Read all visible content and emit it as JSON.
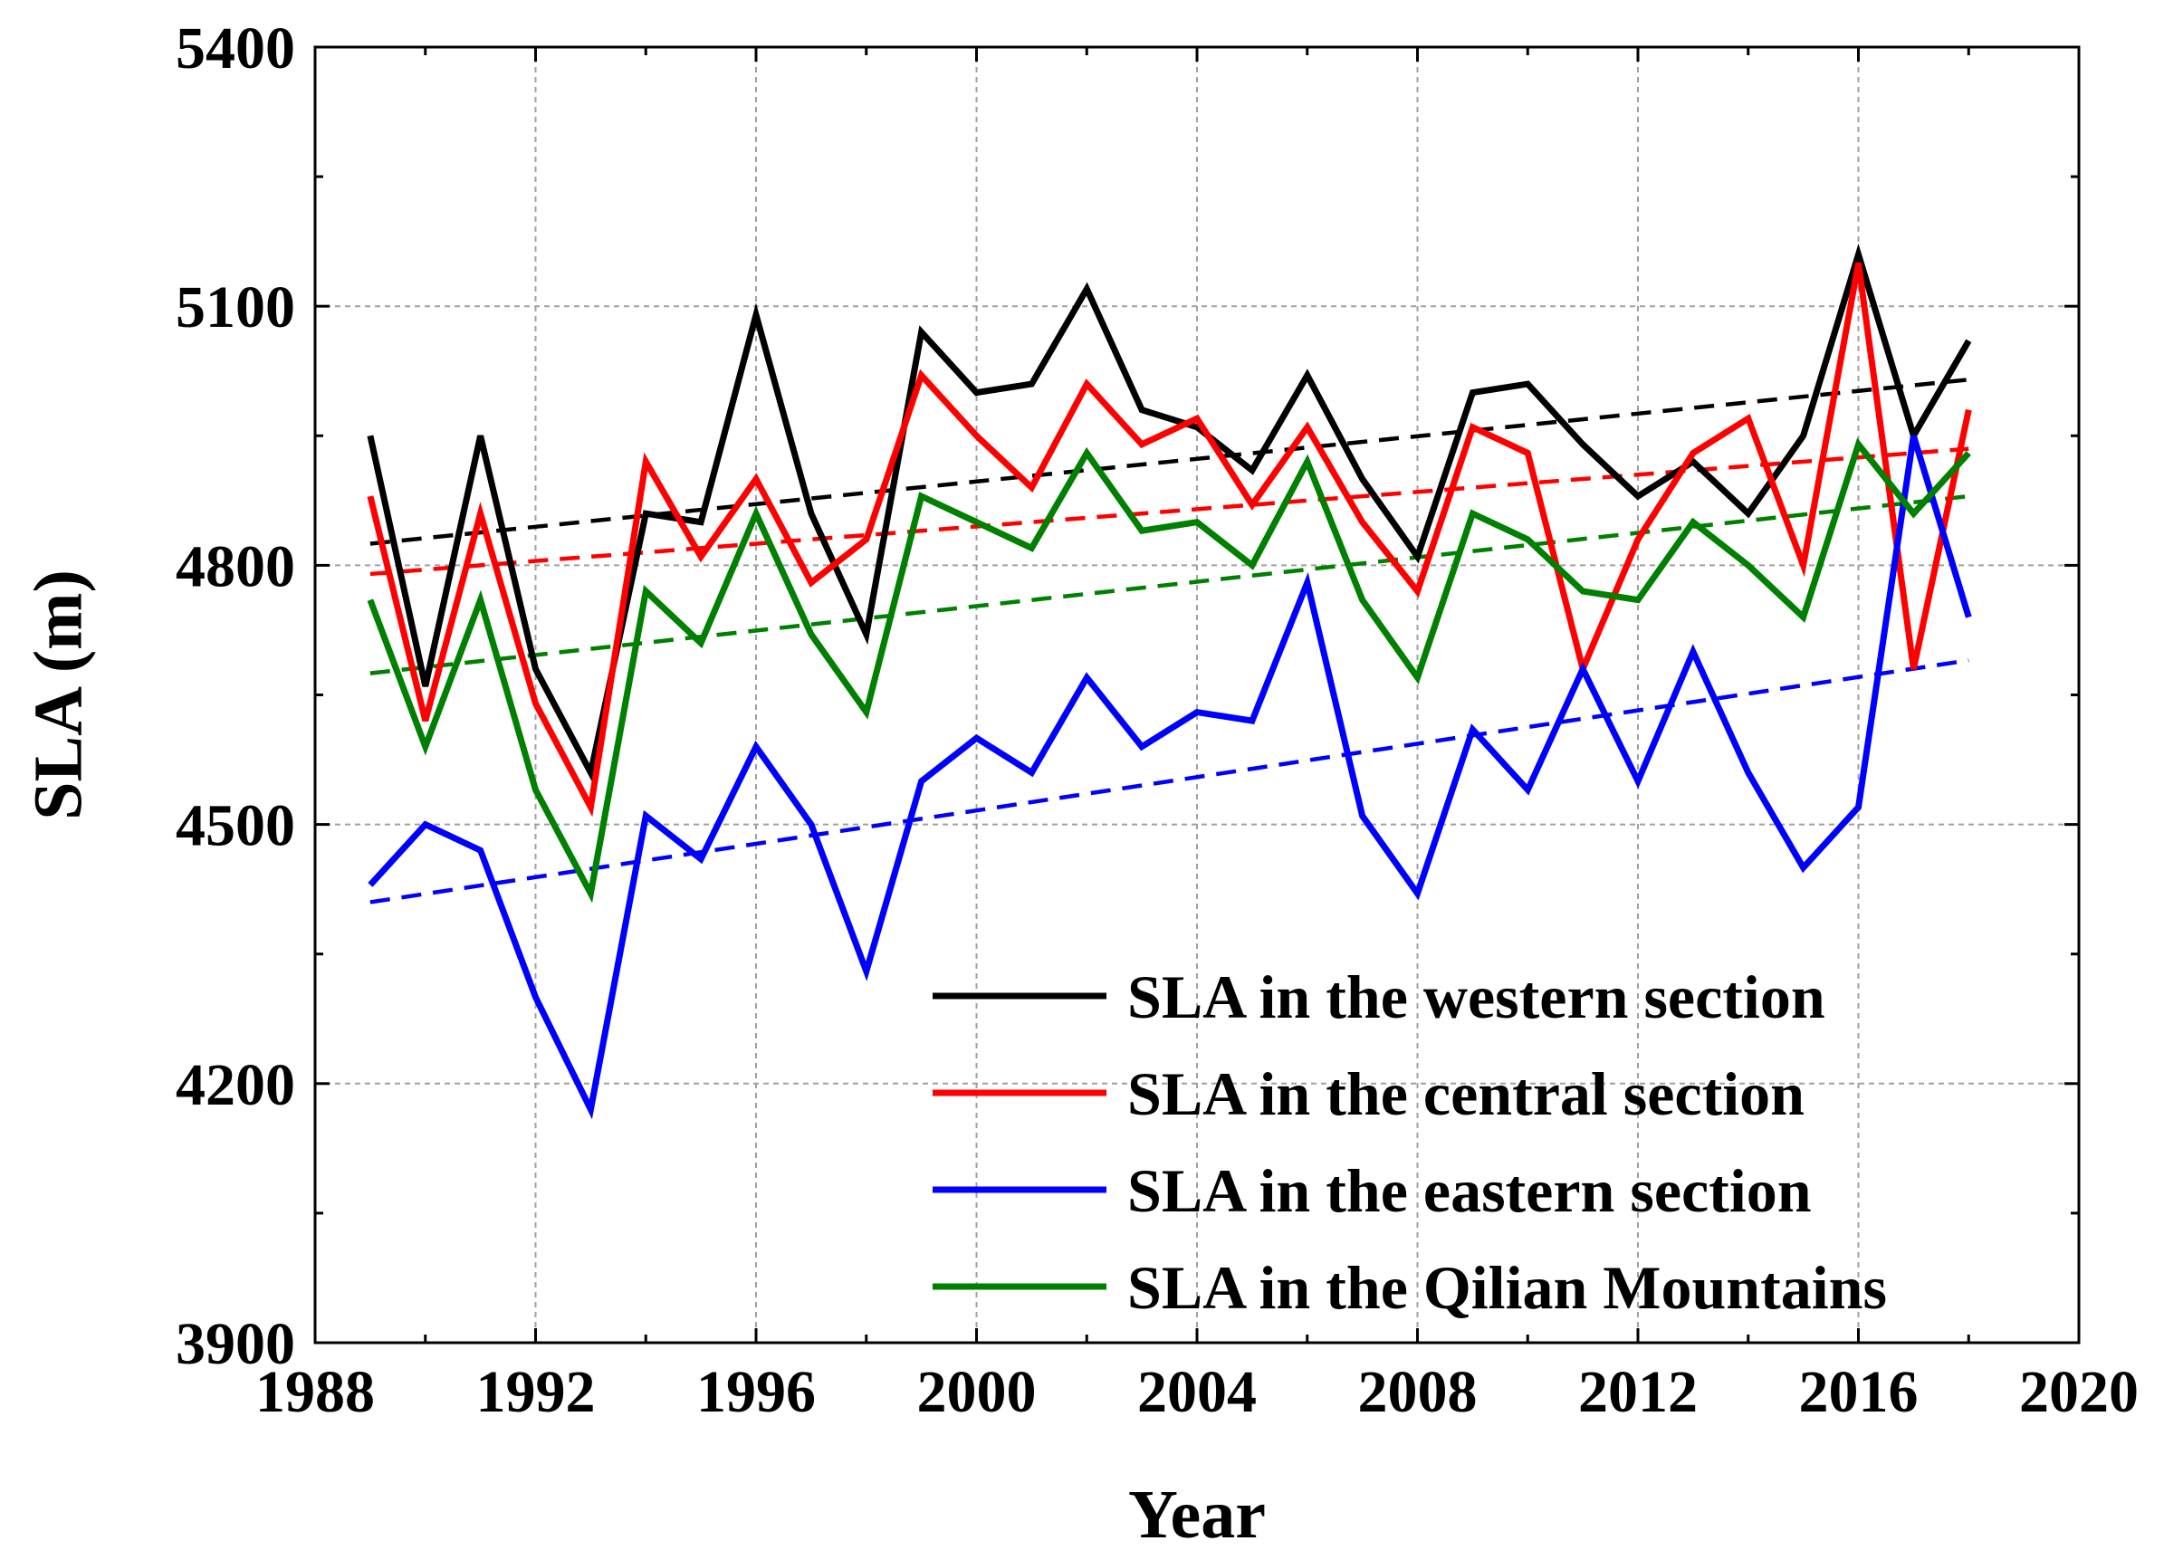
{
  "chart_data": {
    "type": "line",
    "title": "",
    "xlabel": "Year",
    "ylabel": "SLA (m)",
    "xlim": [
      1988,
      2020
    ],
    "ylim": [
      3900,
      5400
    ],
    "xticks": [
      1988,
      1992,
      1996,
      2000,
      2004,
      2008,
      2012,
      2016,
      2020
    ],
    "yticks": [
      3900,
      4200,
      4500,
      4800,
      5100,
      5400
    ],
    "x_tick_labels": [
      "1988",
      "1992",
      "1996",
      "2000",
      "2004",
      "2008",
      "2012",
      "2016",
      "2020"
    ],
    "y_tick_labels": [
      "3900",
      "4200",
      "4500",
      "4800",
      "5100",
      "5400"
    ],
    "grid": true,
    "legend_position": "bottom-right",
    "x": [
      1989,
      1990,
      1991,
      1992,
      1993,
      1994,
      1995,
      1996,
      1997,
      1998,
      1999,
      2000,
      2001,
      2002,
      2003,
      2004,
      2005,
      2006,
      2007,
      2008,
      2009,
      2010,
      2011,
      2012,
      2013,
      2014,
      2015,
      2016,
      2017,
      2018
    ],
    "series": [
      {
        "name": "SLA in the western section",
        "color": "#000000",
        "values": [
          4950,
          4660,
          4950,
          4680,
          4560,
          4860,
          4850,
          5090,
          4860,
          4720,
          5070,
          5000,
          5010,
          5120,
          4980,
          4960,
          4910,
          5020,
          4900,
          4810,
          5000,
          5010,
          4940,
          4880,
          4920,
          4860,
          4950,
          5160,
          4950,
          5060
        ],
        "trend": [
          4825,
          5015
        ]
      },
      {
        "name": "SLA in the central section",
        "color": "#ff0000",
        "values": [
          4880,
          4620,
          4860,
          4640,
          4520,
          4920,
          4810,
          4900,
          4780,
          4830,
          5020,
          4950,
          4890,
          5010,
          4940,
          4970,
          4870,
          4960,
          4850,
          4770,
          4960,
          4930,
          4680,
          4830,
          4930,
          4970,
          4800,
          5150,
          4680,
          4980
        ],
        "trend": [
          4790,
          4935
        ]
      },
      {
        "name": "SLA in the eastern section",
        "color": "#0000ff",
        "values": [
          4430,
          4500,
          4470,
          4300,
          4170,
          4510,
          4460,
          4590,
          4500,
          4330,
          4550,
          4600,
          4560,
          4670,
          4590,
          4630,
          4620,
          4780,
          4510,
          4420,
          4610,
          4540,
          4680,
          4550,
          4700,
          4560,
          4450,
          4520,
          4950,
          4740
        ],
        "trend": [
          4410,
          4690
        ]
      },
      {
        "name": "SLA in the Qilian Mountains",
        "color": "#008000",
        "values": [
          4760,
          4590,
          4760,
          4540,
          4420,
          4770,
          4710,
          4860,
          4720,
          4630,
          4880,
          4850,
          4820,
          4930,
          4840,
          4850,
          4800,
          4920,
          4760,
          4670,
          4860,
          4830,
          4770,
          4760,
          4850,
          4800,
          4740,
          4940,
          4860,
          4930
        ],
        "trend": [
          4675,
          4880
        ]
      }
    ]
  }
}
